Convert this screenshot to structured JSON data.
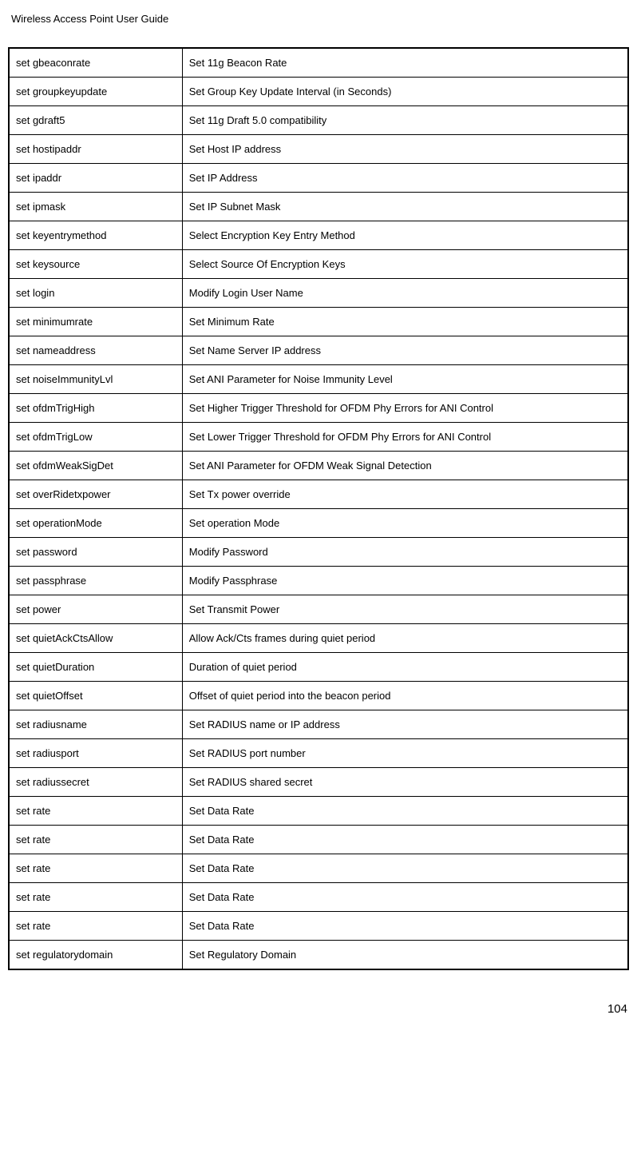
{
  "header": "Wireless Access Point User Guide",
  "page_number": "104",
  "table": {
    "col1_width": "28%",
    "col2_width": "72%",
    "border_color": "#000000",
    "background_color": "#ffffff",
    "font_size": 13,
    "cell_padding": "10px 8px",
    "rows": [
      {
        "cmd": "set gbeaconrate",
        "desc": "Set 11g Beacon Rate"
      },
      {
        "cmd": "set groupkeyupdate",
        "desc": "Set Group Key Update Interval (in Seconds)"
      },
      {
        "cmd": "set gdraft5",
        "desc": "Set 11g Draft 5.0 compatibility"
      },
      {
        "cmd": "set hostipaddr",
        "desc": "Set Host IP address"
      },
      {
        "cmd": "set ipaddr",
        "desc": "Set IP Address"
      },
      {
        "cmd": "set ipmask",
        "desc": "Set IP Subnet Mask"
      },
      {
        "cmd": "set keyentrymethod",
        "desc": "Select Encryption Key Entry Method"
      },
      {
        "cmd": "set keysource",
        "desc": "Select Source Of Encryption Keys"
      },
      {
        "cmd": "set login",
        "desc": "Modify Login User Name"
      },
      {
        "cmd": "set minimumrate",
        "desc": "Set Minimum Rate"
      },
      {
        "cmd": "set nameaddress",
        "desc": "Set Name Server IP address"
      },
      {
        "cmd": "set noiseImmunityLvl",
        "desc": "Set ANI Parameter for Noise Immunity Level"
      },
      {
        "cmd": "set ofdmTrigHigh",
        "desc": "Set Higher Trigger Threshold for OFDM Phy Errors for ANI Control"
      },
      {
        "cmd": "set ofdmTrigLow",
        "desc": "Set Lower Trigger Threshold for OFDM Phy Errors for ANI Control"
      },
      {
        "cmd": "set ofdmWeakSigDet",
        "desc": "Set ANI Parameter for OFDM Weak Signal Detection"
      },
      {
        "cmd": "set overRidetxpower",
        "desc": "Set Tx power override"
      },
      {
        "cmd": "set operationMode",
        "desc": "Set operation Mode"
      },
      {
        "cmd": "set password",
        "desc": "Modify Password"
      },
      {
        "cmd": "set passphrase",
        "desc": "Modify Passphrase"
      },
      {
        "cmd": "set power",
        "desc": "Set Transmit Power"
      },
      {
        "cmd": "set quietAckCtsAllow",
        "desc": "Allow Ack/Cts frames during quiet period"
      },
      {
        "cmd": "set quietDuration",
        "desc": "Duration of quiet period"
      },
      {
        "cmd": "set quietOffset",
        "desc": "Offset of quiet period into the beacon period"
      },
      {
        "cmd": "set radiusname",
        "desc": "Set RADIUS name or IP address"
      },
      {
        "cmd": "set radiusport",
        "desc": "Set RADIUS port number"
      },
      {
        "cmd": "set radiussecret",
        "desc": "Set RADIUS shared secret"
      },
      {
        "cmd": "set rate",
        "desc": "Set Data Rate"
      },
      {
        "cmd": "set rate",
        "desc": "Set Data Rate"
      },
      {
        "cmd": "set rate",
        "desc": "Set Data Rate"
      },
      {
        "cmd": "set rate",
        "desc": "Set Data Rate"
      },
      {
        "cmd": "set rate",
        "desc": "Set Data Rate"
      },
      {
        "cmd": "set regulatorydomain",
        "desc": "Set Regulatory Domain"
      }
    ]
  }
}
